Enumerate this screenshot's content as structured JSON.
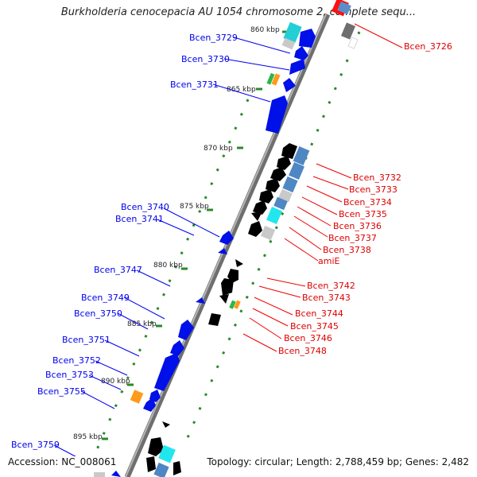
{
  "title": "Burkholderia cenocepacia AU 1054 chromosome 2, complete sequ...",
  "footer": {
    "accession": "Accession: NC_008061",
    "summary": "Topology: circular; Length: 2,788,459 bp; Genes: 2,482"
  },
  "colors": {
    "forward": "#ff0000",
    "reverse": "#0000ee",
    "backbone": "#8a8a8a",
    "tick": "#2a8a2a"
  },
  "ticks": [
    "860 kbp",
    "865 kbp",
    "870 kbp",
    "875 kbp",
    "880 kbp",
    "885 kbp",
    "890 kbp",
    "895 kbp"
  ],
  "left_labels": [
    "Bcen_3729",
    "Bcen_3730",
    "Bcen_3731",
    "Bcen_3740",
    "Bcen_3741",
    "Bcen_3747",
    "Bcen_3749",
    "Bcen_3750",
    "Bcen_3751",
    "Bcen_3752",
    "Bcen_3753",
    "Bcen_3755",
    "Bcen_3759"
  ],
  "right_labels": [
    "Bcen_3726",
    "Bcen_3732",
    "Bcen_3733",
    "Bcen_3734",
    "Bcen_3735",
    "Bcen_3736",
    "Bcen_3737",
    "Bcen_3738",
    "amiE",
    "Bcen_3742",
    "Bcen_3743",
    "Bcen_3744",
    "Bcen_3745",
    "Bcen_3746",
    "Bcen_3748"
  ]
}
